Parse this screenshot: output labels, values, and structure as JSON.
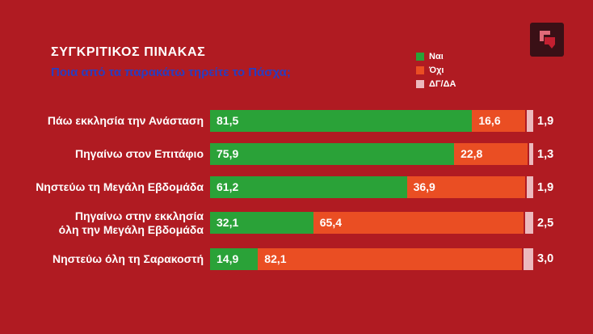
{
  "background_color": "#b01b22",
  "logo": {
    "bg_color": "#3a1016",
    "pink_color": "#e06a78",
    "red_color": "#c41f30"
  },
  "chart_data": {
    "type": "bar",
    "orientation": "horizontal",
    "stacked": true,
    "title": "ΣΥΓΚΡΙΤΙΚΟΣ ΠΙΝΑΚΑΣ",
    "subtitle": "Ποια από τα παρακάτω τηρείτε το Πάσχα;",
    "title_color": "#ffffff",
    "subtitle_color": "#2b3cbf",
    "legend_position": "top-center",
    "grid": false,
    "xlim": [
      0,
      100
    ],
    "categories": [
      "Πάω εκκλησία την Ανάσταση",
      "Πηγαίνω στον Επιτάφιο",
      "Νηστεύω τη Μεγάλη Εβδομάδα",
      "Πηγαίνω στην εκκλησία\nόλη την Μεγάλη Εβδομάδα",
      "Νηστεύω όλη τη Σαρακοστή"
    ],
    "series": [
      {
        "name": "Ναι",
        "color": "#2aa238",
        "values": [
          81.5,
          75.9,
          61.2,
          32.1,
          14.9
        ],
        "labels": [
          "81,5",
          "75,9",
          "61,2",
          "32,1",
          "14,9"
        ]
      },
      {
        "name": "Όχι",
        "color": "#ea4e23",
        "values": [
          16.6,
          22.8,
          36.9,
          65.4,
          82.1
        ],
        "labels": [
          "16,6",
          "22,8",
          "36,9",
          "65,4",
          "82,1"
        ]
      },
      {
        "name": "ΔΓ/ΔΑ",
        "color": "#ecb9bd",
        "values": [
          1.9,
          1.3,
          1.9,
          2.5,
          3.0
        ],
        "labels": [
          "1,9",
          "1,3",
          "1,9",
          "2,5",
          "3,0"
        ]
      }
    ]
  }
}
